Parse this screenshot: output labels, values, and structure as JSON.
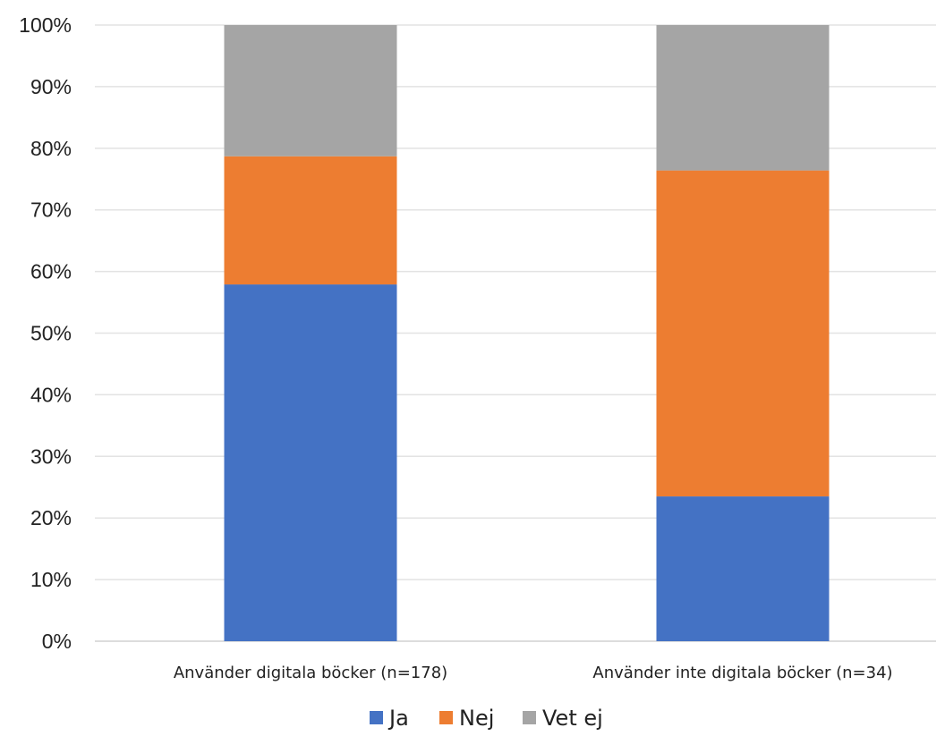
{
  "chart_data": {
    "type": "bar",
    "stacked": true,
    "normalized": true,
    "categories": [
      "Använder digitala böcker (n=178)",
      "Använder inte digitala böcker (n=34)"
    ],
    "series": [
      {
        "name": "Ja",
        "values": [
          57.9,
          23.5
        ],
        "color": "#4472C4"
      },
      {
        "name": "Nej",
        "values": [
          20.8,
          52.9
        ],
        "color": "#ED7D31"
      },
      {
        "name": "Vet ej",
        "values": [
          21.3,
          23.6
        ],
        "color": "#A5A5A5"
      }
    ],
    "y_ticks": [
      "0%",
      "10%",
      "20%",
      "30%",
      "40%",
      "50%",
      "60%",
      "70%",
      "80%",
      "90%",
      "100%"
    ],
    "ylim": [
      0,
      100
    ],
    "grid": true,
    "legend_position": "bottom"
  }
}
